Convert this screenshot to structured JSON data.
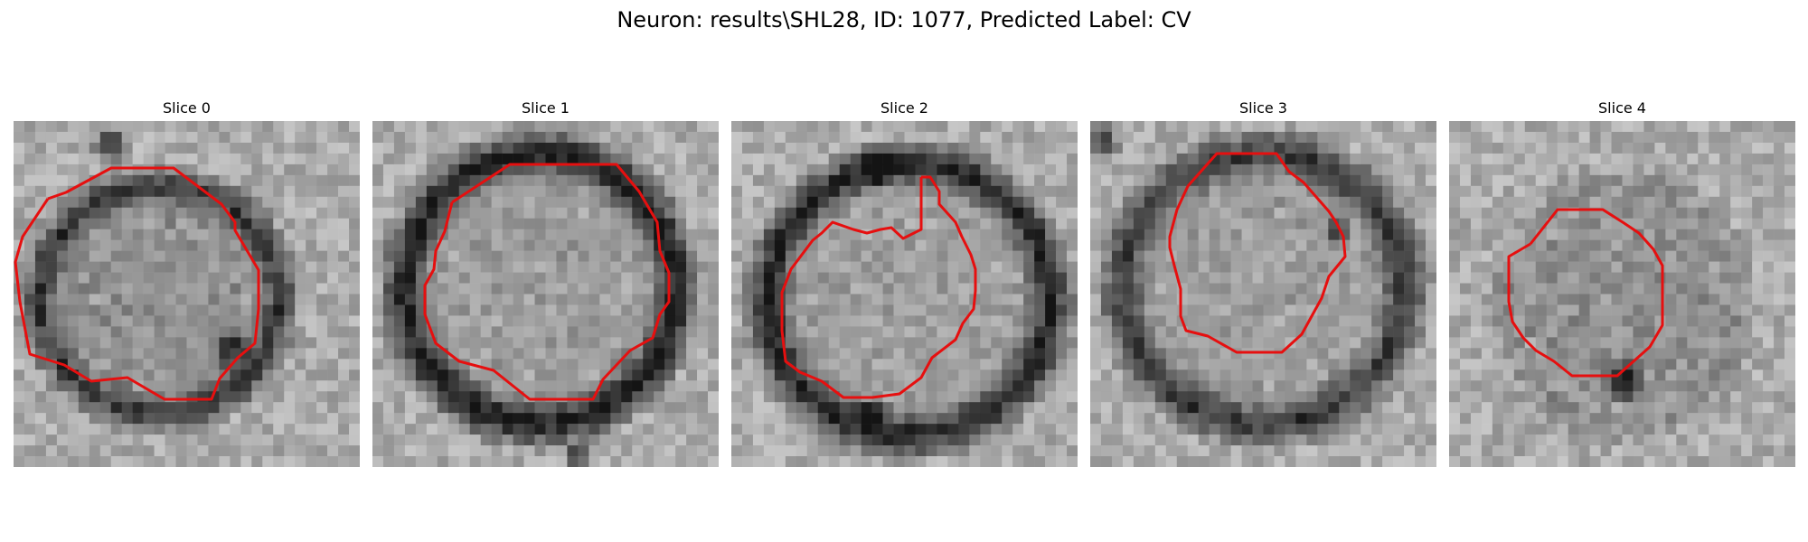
{
  "figure": {
    "title": "Neuron: results\\SHL28, ID: 1077, Predicted Label: CV",
    "outline_color": "#e60f0f"
  },
  "panels": [
    {
      "title": "Slice 0"
    },
    {
      "title": "Slice 1"
    },
    {
      "title": "Slice 2"
    },
    {
      "title": "Slice 3"
    },
    {
      "title": "Slice 4"
    }
  ]
}
